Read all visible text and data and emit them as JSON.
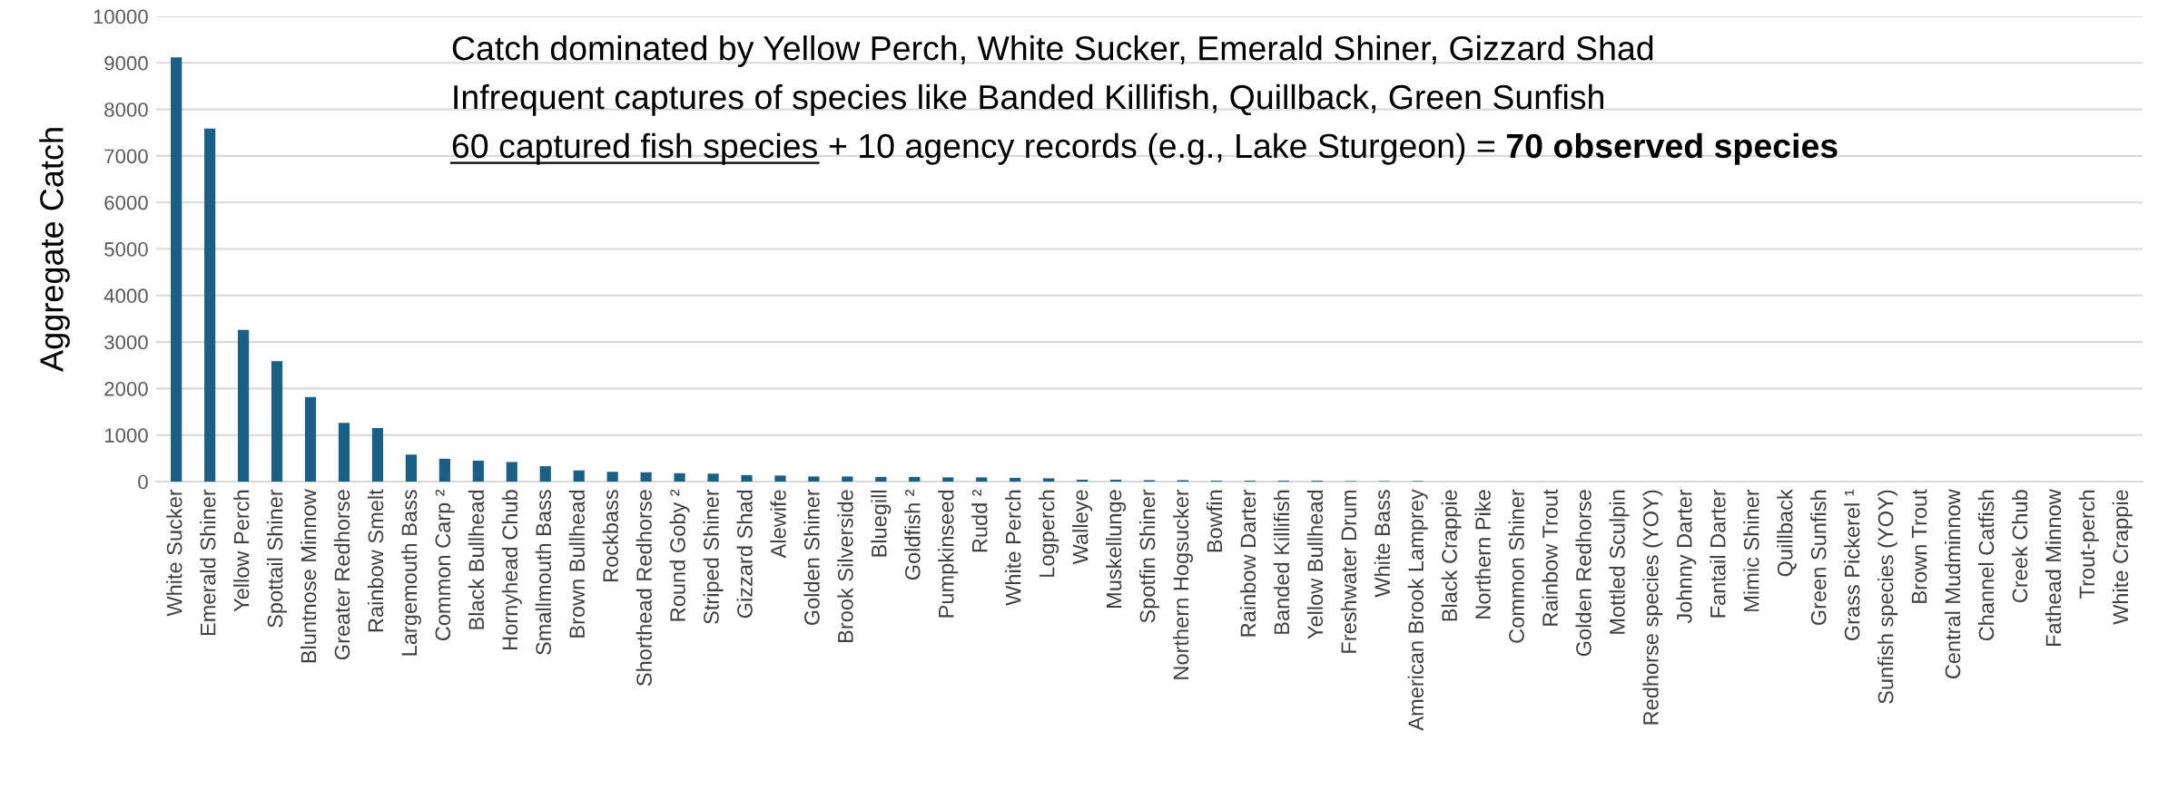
{
  "chart_data": {
    "type": "bar",
    "ylabel": "Aggregate Catch",
    "categories": [
      "White Sucker",
      "Emerald Shiner",
      "Yellow Perch",
      "Spottail Shiner",
      "Bluntnose Minnow",
      "Greater Redhorse",
      "Rainbow Smelt",
      "Largemouth Bass",
      "Common Carp ²",
      "Black Bullhead",
      "Hornyhead Chub",
      "Smallmouth Bass",
      "Brown Bullhead",
      "Rockbass",
      "Shorthead Redhorse",
      "Round Goby ²",
      "Striped Shiner",
      "Gizzard Shad",
      "Alewife",
      "Golden Shiner",
      "Brook Silverside",
      "Bluegill",
      "Goldfish ²",
      "Pumpkinseed",
      "Rudd ²",
      "White Perch",
      "Logperch",
      "Walleye",
      "Muskellunge",
      "Spotfin Shiner",
      "Northern Hogsucker",
      "Bowfin",
      "Rainbow Darter",
      "Banded Killifish",
      "Yellow Bullhead",
      "Freshwater Drum",
      "White Bass",
      "American Brook Lamprey",
      "Black Crappie",
      "Northern Pike",
      "Common Shiner",
      "Rainbow Trout",
      "Golden Redhorse",
      "Mottled Sculpin",
      "Redhorse species (YOY)",
      "Johnny Darter",
      "Fantail Darter",
      "Mimic Shiner",
      "Quillback",
      "Green Sunfish",
      "Grass Pickerel ¹",
      "Sunfish species (YOY)",
      "Brown Trout",
      "Central Mudminnow",
      "Channel Catfish",
      "Creek Chub",
      "Fathead Minnow",
      "Trout-perch",
      "White Crappie"
    ],
    "values": [
      9120,
      7590,
      3260,
      2590,
      1820,
      1260,
      1150,
      580,
      490,
      450,
      420,
      330,
      240,
      210,
      200,
      180,
      170,
      140,
      130,
      110,
      110,
      100,
      100,
      90,
      90,
      80,
      70,
      40,
      40,
      30,
      30,
      20,
      20,
      20,
      20,
      10,
      10,
      10,
      0,
      0,
      0,
      0,
      0,
      0,
      0,
      0,
      0,
      0,
      0,
      0,
      0,
      0,
      0,
      0,
      0,
      0,
      0,
      0,
      0
    ],
    "color": "#1a5f85",
    "ylim": [
      0,
      10000
    ],
    "yticks": [
      0,
      1000,
      2000,
      3000,
      4000,
      5000,
      6000,
      7000,
      8000,
      9000,
      10000
    ],
    "grid": "y",
    "annotations": [
      "Catch dominated by Yellow Perch, White Sucker, Emerald Shiner, Gizzard Shad",
      "Infrequent captures of species like Banded Killifish, Quillback, Green Sunfish",
      "60 captured fish species",
      " + 10 agency records (e.g., Lake Sturgeon) = ",
      "70 observed species"
    ]
  }
}
